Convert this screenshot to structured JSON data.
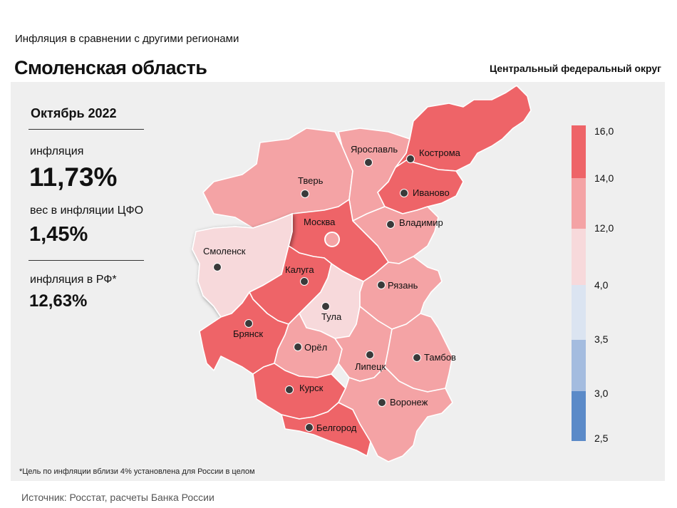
{
  "header": {
    "subtitle": "Инфляция  в сравнении  с другими  регионами",
    "region": "Смоленская область",
    "district": "Центральный федеральный округ"
  },
  "stats": {
    "period": "Октябрь 2022",
    "inflation_label": "инфляция",
    "inflation_value": "11,73%",
    "weight_label": "вес в инфляции  ЦФО",
    "weight_value": "1,45%",
    "rf_label": "инфляция  в РФ*",
    "rf_value": "12,63%"
  },
  "legend": {
    "ticks": [
      "16,0",
      "14,0",
      "12,0",
      "4,0",
      "3,5",
      "3,0",
      "2,5"
    ],
    "colors": [
      "#ee6468",
      "#f4a3a5",
      "#f7d9db",
      "#dbe4f1",
      "#a4bcdf",
      "#5b8ac8"
    ]
  },
  "map": {
    "highlighted_region": "Смоленск",
    "cities": [
      {
        "name": "Смоленск",
        "color": "#f7d9db"
      },
      {
        "name": "Тверь",
        "color": "#f4a3a5"
      },
      {
        "name": "Ярославль",
        "color": "#f4a3a5"
      },
      {
        "name": "Кострома",
        "color": "#ee6468"
      },
      {
        "name": "Иваново",
        "color": "#ee6468"
      },
      {
        "name": "Владимир",
        "color": "#f4a3a5"
      },
      {
        "name": "Москва",
        "color": "#ee6468"
      },
      {
        "name": "Калуга",
        "color": "#ee6468"
      },
      {
        "name": "Тула",
        "color": "#f7d9db"
      },
      {
        "name": "Рязань",
        "color": "#f4a3a5"
      },
      {
        "name": "Брянск",
        "color": "#ee6468"
      },
      {
        "name": "Орёл",
        "color": "#f4a3a5"
      },
      {
        "name": "Липецк",
        "color": "#f4a3a5"
      },
      {
        "name": "Тамбов",
        "color": "#f4a3a5"
      },
      {
        "name": "Курск",
        "color": "#ee6468"
      },
      {
        "name": "Воронеж",
        "color": "#f4a3a5"
      },
      {
        "name": "Белгород",
        "color": "#ee6468"
      }
    ]
  },
  "footnote": "*Цель по инфляции вблизи 4% установлена для России в целом",
  "source": "Источник: Росстат, расчеты Банка России"
}
